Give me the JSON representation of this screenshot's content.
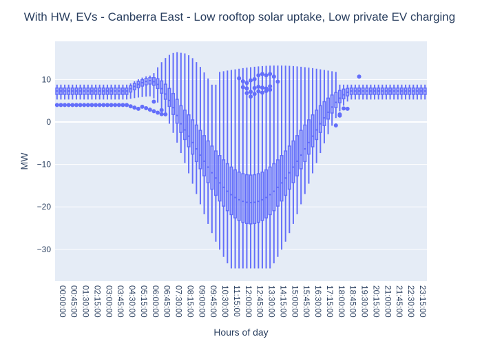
{
  "chart_data": {
    "type": "box",
    "title": "With HW, EVs - Canberra East - Low rooftop solar uptake, Low private EV charging",
    "xlabel": "Hours of day",
    "ylabel": "MW",
    "ylim": [
      -37.5,
      19
    ],
    "yticks": [
      10,
      0,
      -10,
      -20,
      -30
    ],
    "ytick_labels": [
      "10",
      "0",
      "−10",
      "−20",
      "−30"
    ],
    "x_tick_labels": [
      "00:00:00",
      "00:45:00",
      "01:30:00",
      "02:15:00",
      "03:00:00",
      "03:45:00",
      "04:30:00",
      "05:15:00",
      "06:00:00",
      "06:45:00",
      "07:30:00",
      "08:15:00",
      "09:00:00",
      "09:45:00",
      "10:30:00",
      "11:15:00",
      "12:00:00",
      "12:45:00",
      "13:30:00",
      "14:15:00",
      "15:00:00",
      "15:45:00",
      "16:30:00",
      "17:15:00",
      "18:00:00",
      "18:45:00",
      "19:30:00",
      "20:15:00",
      "21:00:00",
      "21:45:00",
      "22:30:00",
      "23:15:00"
    ],
    "categories_count": 96,
    "category_interval_minutes": 15,
    "grid": true,
    "legend": "none",
    "colors": {
      "box": "#636efa",
      "plot_bg": "#e5ecf6",
      "grid": "#ffffff",
      "text": "#2a3f5f"
    },
    "box_profile": {
      "night_q1": 6.5,
      "night_median": 7.3,
      "night_q3": 8.0,
      "night_whisker_low": 5.3,
      "night_whisker_high": 8.8,
      "midday_q1": -24.0,
      "midday_median": -19.0,
      "midday_q3": -12.5,
      "midday_whisker_low": -34.5,
      "midday_whisker_high": 10.8
    },
    "annotations": []
  }
}
